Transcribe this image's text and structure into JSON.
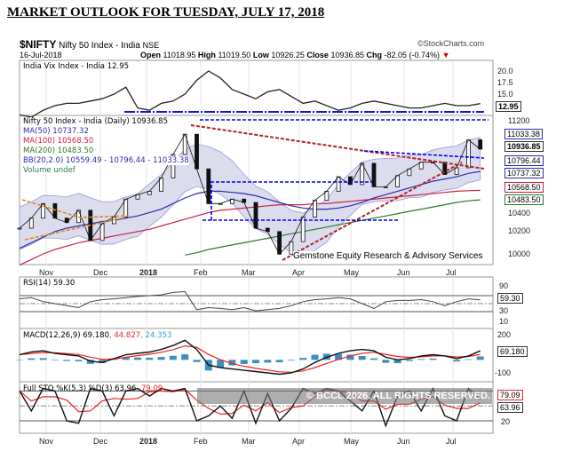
{
  "page_title": "MARKET OUTLOOK FOR TUESDAY, JULY 17, 2018",
  "header": {
    "symbol": "$NIFTY",
    "name": "Nifty 50 Index - India",
    "exchange": "NSE",
    "source": "©StockCharts.com",
    "date": "16-Jul-2018",
    "open_label": "Open",
    "open": "11018.95",
    "high_label": "High",
    "high": "11019.50",
    "low_label": "Low",
    "low": "10926.25",
    "close_label": "Close",
    "close": "10936.85",
    "chg_label": "Chg",
    "chg": "-82.05 (-0.74%)",
    "down_icon": "triangle-down-icon"
  },
  "colors": {
    "ma50": "#2b2bb0",
    "ma100": "#cc1f3a",
    "ma200": "#2a7a2a",
    "bb": "#9a9ad8",
    "trend_red": "#b22222",
    "trend_blue": "#0000ee",
    "macd_signal": "#ee2222",
    "hist": "#3b8fbf",
    "rsi_fill": "#a8802a"
  },
  "watermark": "© BCCL 2026. ALL RIGHTS RESERVED.",
  "credit": "Gemstone Equity Research & Advisory Services",
  "chart_data": [
    {
      "type": "line",
      "title": "India Vix Index - India 12.95",
      "legend": "India Vix Index - India 12.95",
      "yticks": [
        "20.0",
        "17.5",
        "15.0"
      ],
      "last": "12.95",
      "values": [
        10.5,
        10,
        11.5,
        12.5,
        13,
        13,
        13.5,
        14,
        15,
        16.5,
        12,
        11.5,
        13,
        13.5,
        15,
        18,
        20,
        18.5,
        16,
        15,
        14,
        15.5,
        16,
        14.5,
        13,
        13.5,
        12.5,
        11.5,
        12,
        13,
        13.5,
        13,
        12.5,
        12,
        12,
        12.5,
        13,
        12.5,
        12.5,
        12.95
      ]
    },
    {
      "type": "line",
      "title": "Nifty 50 Index - India (Daily) 10936.85",
      "x_unit": "weekly, 16-Oct-2017 to 16-Jul-2018",
      "legend": [
        "Nifty 50 Index - India (Daily) 10936.85",
        "MA(50) 10737.32",
        "MA(100) 10568.50",
        "MA(200) 10483.50",
        "BB(20,2.0) 10559.49 - 10796.44 - 11033.38",
        "Volume undef"
      ],
      "yticks": [
        "11200",
        "10400",
        "10200",
        "10000"
      ],
      "ylim": [
        9950,
        11250
      ],
      "flags": [
        "11033.38",
        "10936.85",
        "10796.44",
        "10737.32",
        "10568.50",
        "10483.50"
      ],
      "close": [
        10230,
        10320,
        10450,
        10320,
        10280,
        10390,
        10120,
        10270,
        10330,
        10490,
        10530,
        10560,
        10680,
        10890,
        11070,
        10760,
        10450,
        10450,
        10490,
        10460,
        10230,
        10200,
        9998,
        10110,
        10330,
        10480,
        10560,
        10690,
        10620,
        10810,
        10600,
        10600,
        10700,
        10760,
        10820,
        10820,
        10710,
        10770,
        11020,
        10936.85
      ],
      "ma50": [
        10050,
        10100,
        10150,
        10200,
        10230,
        10250,
        10270,
        10290,
        10300,
        10320,
        10340,
        10370,
        10400,
        10450,
        10500,
        10540,
        10560,
        10560,
        10550,
        10540,
        10520,
        10490,
        10460,
        10430,
        10410,
        10400,
        10400,
        10410,
        10430,
        10460,
        10500,
        10530,
        10560,
        10590,
        10620,
        10650,
        10670,
        10690,
        10720,
        10737.32
      ],
      "ma100": [
        9900,
        9950,
        10000,
        10040,
        10070,
        10100,
        10120,
        10140,
        10160,
        10180,
        10200,
        10220,
        10250,
        10280,
        10310,
        10340,
        10370,
        10390,
        10400,
        10410,
        10420,
        10430,
        10440,
        10440,
        10440,
        10450,
        10450,
        10460,
        10470,
        10480,
        10490,
        10500,
        10510,
        10520,
        10530,
        10540,
        10550,
        10560,
        10565,
        10568.5
      ],
      "ma200": [
        null,
        null,
        null,
        null,
        null,
        null,
        null,
        null,
        null,
        null,
        null,
        null,
        null,
        null,
        9990,
        10010,
        10040,
        10060,
        10080,
        10100,
        10120,
        10140,
        10160,
        10180,
        10200,
        10220,
        10240,
        10260,
        10280,
        10300,
        10320,
        10340,
        10360,
        10380,
        10400,
        10420,
        10440,
        10460,
        10475,
        10483.5
      ]
    },
    {
      "type": "line",
      "title": "RSI(14) 59.30",
      "yticks": [
        "90",
        "70",
        "50",
        "30",
        "10"
      ],
      "last": "59.30",
      "values": [
        62,
        65,
        55,
        50,
        45,
        40,
        55,
        60,
        62,
        65,
        68,
        70,
        72,
        78,
        80,
        35,
        40,
        38,
        35,
        40,
        32,
        35,
        38,
        45,
        55,
        60,
        62,
        65,
        62,
        50,
        38,
        55,
        58,
        58,
        60,
        55,
        45,
        55,
        62,
        59.3
      ]
    },
    {
      "type": "line",
      "title": "MACD(12,26,9)",
      "macd_label": "MACD(12,26,9) 69.180",
      "signal_label": ", 44.827",
      "hist_label": ", 24.353",
      "yticks": [
        "200",
        "100",
        "-100"
      ],
      "last": "69.180",
      "values": [
        40,
        60,
        70,
        50,
        40,
        30,
        -10,
        -20,
        10,
        40,
        50,
        60,
        80,
        110,
        150,
        80,
        -40,
        -60,
        -70,
        -80,
        -90,
        -100,
        -110,
        -100,
        -70,
        -20,
        20,
        50,
        70,
        80,
        70,
        20,
        0,
        10,
        30,
        40,
        30,
        10,
        30,
        69.18
      ]
    },
    {
      "type": "line",
      "title": "Full STO %K(5,3) %D(3)",
      "k_label": "Full STO %K(5,3) %D(3) 63.96",
      "d_label": ", 79.09",
      "yticks": [
        "70",
        "50",
        "20"
      ],
      "flags": [
        "79.09",
        "63.96"
      ],
      "values": [
        80,
        40,
        85,
        80,
        20,
        15,
        85,
        80,
        30,
        80,
        85,
        70,
        85,
        80,
        85,
        20,
        30,
        50,
        25,
        80,
        15,
        75,
        20,
        45,
        85,
        75,
        85,
        80,
        60,
        40,
        80,
        10,
        70,
        80,
        40,
        85,
        30,
        20,
        85,
        63.96
      ]
    }
  ],
  "months": [
    "Nov",
    "Dec",
    "2018",
    "Feb",
    "Mar",
    "Apr",
    "May",
    "Jun",
    "Jul"
  ]
}
